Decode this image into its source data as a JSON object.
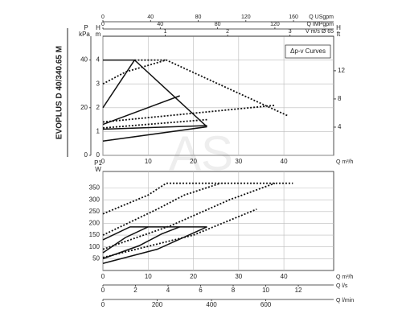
{
  "product": "EVOPLUS D 40/340.65 M",
  "watermark": "AS",
  "chart_data": [
    {
      "type": "line",
      "annotation": "Δp-v Curves",
      "grid": true,
      "xlabel": "Q m³/h",
      "xlim": [
        0,
        51
      ],
      "xticks": [
        0,
        10,
        20,
        30,
        40
      ],
      "ylabel": "H",
      "yunit": "m",
      "ylim": [
        0,
        5
      ],
      "yticks": [
        0,
        1,
        2,
        3,
        4
      ],
      "extra_axes": [
        {
          "label": "Q USgpm",
          "side": "top",
          "lim": [
            0,
            193.7
          ],
          "ticks": [
            0,
            40,
            80,
            120,
            160
          ]
        },
        {
          "label": "Q IMPgpm",
          "side": "top",
          "lim": [
            0,
            161
          ],
          "ticks": [
            0,
            40,
            80,
            120
          ]
        },
        {
          "label": "V m/s Ø 65",
          "side": "top",
          "lim": [
            0,
            3.7
          ],
          "ticks": [
            1,
            2,
            3
          ]
        },
        {
          "label": "P",
          "unit": "kPa",
          "side": "left",
          "lim": [
            0,
            50
          ],
          "ticks": [
            0,
            20,
            40
          ]
        },
        {
          "label": "H",
          "unit": "ft",
          "side": "right",
          "lim": [
            0,
            16.9
          ],
          "ticks": [
            4,
            8,
            12
          ]
        }
      ],
      "series": [
        {
          "color": "#111",
          "style": "solid",
          "x": [
            0,
            7,
            23
          ],
          "values": [
            4,
            4,
            1.2
          ]
        },
        {
          "color": "#111",
          "style": "solid",
          "x": [
            0,
            7
          ],
          "values": [
            2,
            4
          ]
        },
        {
          "color": "#111",
          "style": "solid",
          "x": [
            0,
            17
          ],
          "values": [
            1.3,
            2.5
          ]
        },
        {
          "color": "#111",
          "style": "solid",
          "x": [
            0,
            23
          ],
          "values": [
            1.1,
            1.25
          ]
        },
        {
          "color": "#111",
          "style": "solid",
          "x": [
            0,
            23
          ],
          "values": [
            0.6,
            1.2
          ]
        },
        {
          "color": "#111",
          "style": "dotted",
          "x": [
            0,
            5,
            14,
            41
          ],
          "values": [
            3,
            3.5,
            4,
            1.65
          ]
        },
        {
          "color": "#111",
          "style": "dotted",
          "x": [
            7,
            14
          ],
          "values": [
            4,
            4
          ]
        },
        {
          "color": "#111",
          "style": "dotted",
          "x": [
            0,
            38
          ],
          "values": [
            1.4,
            2.1
          ]
        },
        {
          "color": "#111",
          "style": "dotted",
          "x": [
            0,
            23
          ],
          "values": [
            1.15,
            1.5
          ]
        }
      ]
    },
    {
      "type": "line",
      "grid": true,
      "xlabel": "Q m³/h",
      "xlim": [
        0,
        51
      ],
      "xticks": [
        0,
        10,
        20,
        30,
        40
      ],
      "ylabel": "P1",
      "yunit": "W",
      "ylim": [
        0,
        420
      ],
      "yticks": [
        50,
        100,
        150,
        200,
        250,
        300,
        350
      ],
      "extra_axes": [
        {
          "label": "Q l/s",
          "side": "bottom",
          "lim": [
            0,
            14.17
          ],
          "ticks": [
            0,
            2,
            4,
            6,
            8,
            10,
            12
          ]
        },
        {
          "label": "Q l/min",
          "side": "bottom",
          "lim": [
            0,
            850
          ],
          "ticks": [
            0,
            200,
            400,
            600
          ]
        }
      ],
      "series": [
        {
          "color": "#111",
          "style": "solid",
          "x": [
            0,
            6,
            23
          ],
          "values": [
            130,
            185,
            185
          ]
        },
        {
          "color": "#111",
          "style": "solid",
          "x": [
            0,
            5,
            10
          ],
          "values": [
            75,
            140,
            185
          ]
        },
        {
          "color": "#111",
          "style": "solid",
          "x": [
            0,
            8,
            13,
            17
          ],
          "values": [
            50,
            105,
            155,
            185
          ]
        },
        {
          "color": "#111",
          "style": "solid",
          "x": [
            0,
            12,
            23
          ],
          "values": [
            30,
            90,
            185
          ]
        },
        {
          "color": "#111",
          "style": "dotted",
          "x": [
            0,
            10,
            14,
            42
          ],
          "values": [
            240,
            320,
            370,
            370
          ]
        },
        {
          "color": "#111",
          "style": "dotted",
          "x": [
            0,
            12,
            18,
            26
          ],
          "values": [
            150,
            260,
            320,
            370
          ]
        },
        {
          "color": "#111",
          "style": "dotted",
          "x": [
            0,
            15,
            28,
            38
          ],
          "values": [
            90,
            190,
            300,
            370
          ]
        },
        {
          "color": "#111",
          "style": "dotted",
          "x": [
            0,
            20,
            34
          ],
          "values": [
            55,
            150,
            260
          ]
        }
      ]
    }
  ]
}
